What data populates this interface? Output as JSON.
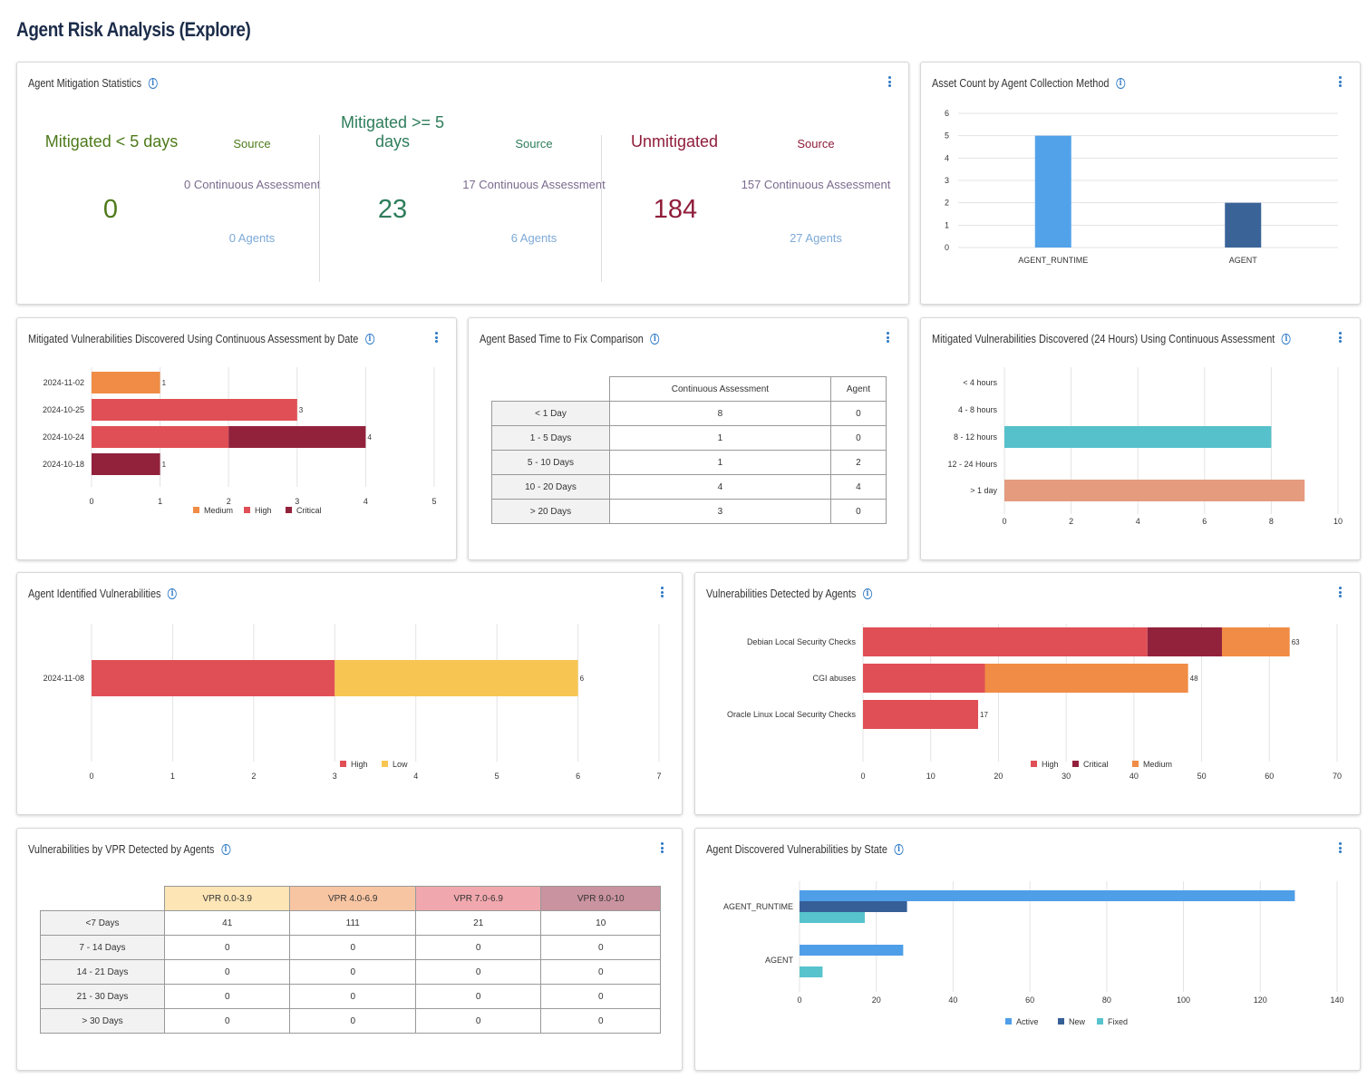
{
  "page": {
    "title": "Agent Risk Analysis (Explore)"
  },
  "colors": {
    "high": "#e04f55",
    "critical": "#92223c",
    "medium": "#f08c45",
    "low": "#f7c652",
    "active": "#4f9ee8",
    "new": "#365f98",
    "fixed": "#57c3cd",
    "teal": "#57c1cb",
    "salmon": "#e59b7e",
    "mitigated_lt5": "#4d7a1a",
    "mitigated_gte5": "#2e7d5b",
    "unmitigated": "#8f1d3a",
    "info": "#2b78c5"
  },
  "mitigation_stats": {
    "title": "Agent Mitigation Statistics",
    "groups": [
      {
        "label": "Mitigated < 5 days",
        "value": "0",
        "source_label": "Source",
        "continuous": "0 Continuous Assessment",
        "agents": "0 Agents"
      },
      {
        "label": "Mitigated >= 5 days",
        "value": "23",
        "source_label": "Source",
        "continuous": "17 Continuous Assessment",
        "agents": "6 Agents"
      },
      {
        "label": "Unmitigated",
        "value": "184",
        "source_label": "Source",
        "continuous": "157 Continuous Assessment",
        "agents": "27 Agents"
      }
    ]
  },
  "asset_count": {
    "title": "Asset Count by Agent Collection Method",
    "chart_data": {
      "type": "bar",
      "categories": [
        "AGENT_RUNTIME",
        "AGENT"
      ],
      "values": [
        5,
        2
      ],
      "ylim": [
        0,
        6
      ],
      "yticks": [
        0,
        1,
        2,
        3,
        4,
        5,
        6
      ],
      "bar_colors": [
        "#52a2ea",
        "#3a6498"
      ]
    }
  },
  "mitigated_by_date": {
    "title": "Mitigated Vulnerabilities Discovered Using Continuous Assessment by Date",
    "chart_data": {
      "type": "bar",
      "orientation": "horizontal",
      "stacked": true,
      "categories": [
        "2024-11-02",
        "2024-10-25",
        "2024-10-24",
        "2024-10-18"
      ],
      "series": [
        {
          "name": "Medium",
          "color": "#f08c45",
          "values": [
            1,
            0,
            0,
            0
          ]
        },
        {
          "name": "High",
          "color": "#e04f55",
          "values": [
            0,
            3,
            2,
            0
          ]
        },
        {
          "name": "Critical",
          "color": "#92223c",
          "values": [
            0,
            0,
            2,
            1
          ]
        }
      ],
      "totals": [
        "1",
        "3",
        "4",
        "1"
      ],
      "xlim": [
        0,
        5
      ],
      "xticks": [
        0,
        1,
        2,
        3,
        4,
        5
      ]
    }
  },
  "time_to_fix": {
    "title": "Agent Based Time to Fix Comparison",
    "columns": [
      "Continuous Assessment",
      "Agent"
    ],
    "rows": [
      {
        "label": "< 1 Day",
        "values": [
          "8",
          "0"
        ]
      },
      {
        "label": "1 - 5 Days",
        "values": [
          "1",
          "0"
        ]
      },
      {
        "label": "5 - 10 Days",
        "values": [
          "1",
          "2"
        ]
      },
      {
        "label": "10 - 20 Days",
        "values": [
          "4",
          "4"
        ]
      },
      {
        "label": "> 20 Days",
        "values": [
          "3",
          "0"
        ]
      }
    ]
  },
  "mitigated_24h": {
    "title": "Mitigated Vulnerabilities Discovered (24 Hours) Using Continuous Assessment",
    "chart_data": {
      "type": "bar",
      "orientation": "horizontal",
      "categories": [
        "< 4 hours",
        "4 - 8 hours",
        "8 - 12 hours",
        "12 - 24 Hours",
        "> 1 day"
      ],
      "values": [
        0,
        0,
        8,
        0,
        9
      ],
      "bar_colors": [
        "#57c1cb",
        "#57c1cb",
        "#57c1cb",
        "#e59b7e",
        "#e59b7e"
      ],
      "xlim": [
        0,
        10
      ],
      "xticks": [
        0,
        2,
        4,
        6,
        8,
        10
      ]
    }
  },
  "agent_identified": {
    "title": "Agent Identified Vulnerabilities",
    "chart_data": {
      "type": "bar",
      "orientation": "horizontal",
      "stacked": true,
      "categories": [
        "2024-11-08"
      ],
      "series": [
        {
          "name": "High",
          "color": "#e04f55",
          "values": [
            3
          ]
        },
        {
          "name": "Low",
          "color": "#f7c652",
          "values": [
            3
          ]
        }
      ],
      "totals": [
        "6"
      ],
      "xlim": [
        0,
        7
      ],
      "xticks": [
        0,
        1,
        2,
        3,
        4,
        5,
        6,
        7
      ]
    }
  },
  "detected_by_agents": {
    "title": "Vulnerabilities Detected by Agents",
    "chart_data": {
      "type": "bar",
      "orientation": "horizontal",
      "stacked": true,
      "categories": [
        "Debian Local Security Checks",
        "CGI abuses",
        "Oracle Linux Local Security Checks"
      ],
      "series": [
        {
          "name": "High",
          "color": "#e04f55",
          "values": [
            42,
            18,
            17
          ]
        },
        {
          "name": "Critical",
          "color": "#92223c",
          "values": [
            11,
            0,
            0
          ]
        },
        {
          "name": "Medium",
          "color": "#f08c45",
          "values": [
            10,
            30,
            0
          ]
        }
      ],
      "totals": [
        "63",
        "48",
        "17"
      ],
      "xlim": [
        0,
        70
      ],
      "xticks": [
        0,
        10,
        20,
        30,
        40,
        50,
        60,
        70
      ]
    }
  },
  "vpr_table": {
    "title": "Vulnerabilities by VPR Detected by Agents",
    "columns": [
      {
        "label": "VPR 0.0-3.9",
        "bg": "#fde5b5"
      },
      {
        "label": "VPR 4.0-6.9",
        "bg": "#f8c5a3"
      },
      {
        "label": "VPR 7.0-6.9",
        "bg": "#f0a8ae"
      },
      {
        "label": "VPR 9.0-10",
        "bg": "#c9939f"
      }
    ],
    "rows": [
      {
        "label": "<7 Days",
        "values": [
          "41",
          "111",
          "21",
          "10"
        ]
      },
      {
        "label": "7 - 14 Days",
        "values": [
          "0",
          "0",
          "0",
          "0"
        ]
      },
      {
        "label": "14 - 21 Days",
        "values": [
          "0",
          "0",
          "0",
          "0"
        ]
      },
      {
        "label": "21 - 30 Days",
        "values": [
          "0",
          "0",
          "0",
          "0"
        ]
      },
      {
        "label": "> 30 Days",
        "values": [
          "0",
          "0",
          "0",
          "0"
        ]
      }
    ]
  },
  "by_state": {
    "title": "Agent Discovered Vulnerabilities by State",
    "chart_data": {
      "type": "bar",
      "orientation": "horizontal",
      "grouped": true,
      "categories": [
        "AGENT_RUNTIME",
        "AGENT"
      ],
      "series": [
        {
          "name": "Active",
          "color": "#4f9ee8",
          "values": [
            129,
            27
          ]
        },
        {
          "name": "New",
          "color": "#365f98",
          "values": [
            28,
            0
          ]
        },
        {
          "name": "Fixed",
          "color": "#57c3cd",
          "values": [
            17,
            6
          ]
        }
      ],
      "xlim": [
        0,
        140
      ],
      "xticks": [
        0,
        20,
        40,
        60,
        80,
        100,
        120,
        140
      ]
    }
  }
}
